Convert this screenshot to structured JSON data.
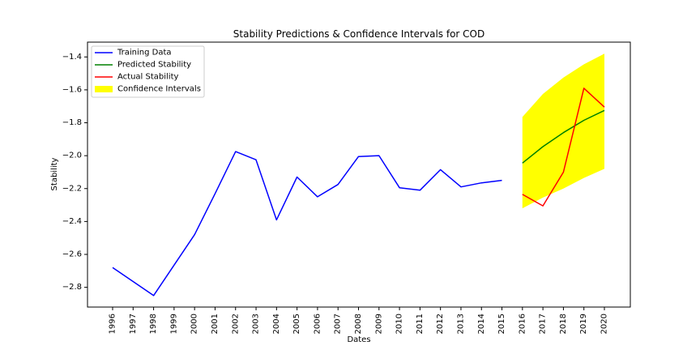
{
  "chart_data": {
    "type": "line",
    "title": "Stability Predictions & Confidence Intervals for COD",
    "xlabel": "Dates",
    "ylabel": "Stability",
    "x_categories": [
      "1996",
      "1997",
      "1998",
      "1999",
      "2000",
      "2001",
      "2002",
      "2003",
      "2004",
      "2005",
      "2006",
      "2007",
      "2008",
      "2009",
      "2010",
      "2011",
      "2012",
      "2013",
      "2014",
      "2015",
      "2016",
      "2017",
      "2018",
      "2019",
      "2020"
    ],
    "ylim": [
      -2.92,
      -1.31
    ],
    "yticks": [
      -2.8,
      -2.6,
      -2.4,
      -2.2,
      -2.0,
      -1.8,
      -1.6,
      -1.4
    ],
    "ytick_labels": [
      "−2.8",
      "−2.6",
      "−2.4",
      "−2.2",
      "−2.0",
      "−1.8",
      "−1.6",
      "−1.4"
    ],
    "grid": false,
    "legend_position": "upper-left",
    "series": [
      {
        "name": "Training Data",
        "color": "#0000ff",
        "x": [
          "1996",
          "1997",
          "1998",
          "1999",
          "2000",
          "2001",
          "2002",
          "2003",
          "2004",
          "2005",
          "2006",
          "2007",
          "2008",
          "2009",
          "2010",
          "2011",
          "2012",
          "2013",
          "2014",
          "2015"
        ],
        "y": [
          -2.68,
          -2.765,
          -2.85,
          -2.665,
          -2.48,
          -2.23,
          -1.975,
          -2.025,
          -2.39,
          -2.13,
          -2.25,
          -2.175,
          -2.005,
          -2.0,
          -2.195,
          -2.21,
          -2.085,
          -2.19,
          -2.165,
          -2.15
        ]
      },
      {
        "name": "Predicted Stability",
        "color": "#008000",
        "x": [
          "2016",
          "2017",
          "2018",
          "2019",
          "2020"
        ],
        "y": [
          -2.045,
          -1.945,
          -1.86,
          -1.785,
          -1.725
        ]
      },
      {
        "name": "Actual Stability",
        "color": "#ff0000",
        "x": [
          "2016",
          "2017",
          "2018",
          "2019",
          "2020"
        ],
        "y": [
          -2.235,
          -2.305,
          -2.1,
          -1.59,
          -1.705
        ]
      }
    ],
    "confidence_interval": {
      "name": "Confidence Intervals",
      "color": "#ffff00",
      "x": [
        "2016",
        "2017",
        "2018",
        "2019",
        "2020"
      ],
      "lower": [
        -2.32,
        -2.255,
        -2.2,
        -2.135,
        -2.08
      ],
      "upper": [
        -1.765,
        -1.625,
        -1.525,
        -1.445,
        -1.38
      ]
    },
    "legend": [
      "Training Data",
      "Predicted Stability",
      "Actual Stability",
      "Confidence Intervals"
    ]
  }
}
